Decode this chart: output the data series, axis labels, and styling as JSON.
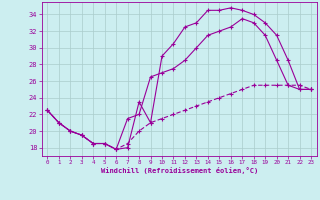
{
  "xlabel": "Windchill (Refroidissement éolien,°C)",
  "ylabel": "",
  "bg_color": "#cceef0",
  "line_color": "#990099",
  "grid_color": "#aacccc",
  "xlim": [
    -0.5,
    23.5
  ],
  "ylim": [
    17.0,
    35.5
  ],
  "xticks": [
    0,
    1,
    2,
    3,
    4,
    5,
    6,
    7,
    8,
    9,
    10,
    11,
    12,
    13,
    14,
    15,
    16,
    17,
    18,
    19,
    20,
    21,
    22,
    23
  ],
  "yticks": [
    18,
    20,
    22,
    24,
    26,
    28,
    30,
    32,
    34
  ],
  "curve1_x": [
    0,
    1,
    2,
    3,
    4,
    5,
    6,
    7,
    8,
    9,
    10,
    11,
    12,
    13,
    14,
    15,
    16,
    17,
    18,
    19,
    20,
    21,
    22,
    23
  ],
  "curve1_y": [
    22.5,
    21.0,
    20.0,
    19.5,
    18.5,
    18.5,
    17.8,
    18.0,
    23.5,
    21.0,
    29.0,
    30.5,
    32.5,
    33.0,
    34.5,
    34.5,
    34.8,
    34.5,
    34.0,
    33.0,
    31.5,
    28.5,
    25.0,
    25.0
  ],
  "curve2_x": [
    0,
    1,
    2,
    3,
    4,
    5,
    6,
    7,
    8,
    9,
    10,
    11,
    12,
    13,
    14,
    15,
    16,
    17,
    18,
    19,
    20,
    21,
    22,
    23
  ],
  "curve2_y": [
    22.5,
    21.0,
    20.0,
    19.5,
    18.5,
    18.5,
    17.8,
    21.5,
    22.0,
    26.5,
    27.0,
    27.5,
    28.5,
    30.0,
    31.5,
    32.0,
    32.5,
    33.5,
    33.0,
    31.5,
    28.5,
    25.5,
    25.0,
    25.0
  ],
  "curve3_x": [
    0,
    1,
    2,
    3,
    4,
    5,
    6,
    7,
    8,
    9,
    10,
    11,
    12,
    13,
    14,
    15,
    16,
    17,
    18,
    19,
    20,
    21,
    22,
    23
  ],
  "curve3_y": [
    22.5,
    21.0,
    20.0,
    19.5,
    18.5,
    18.5,
    17.8,
    18.5,
    20.0,
    21.0,
    21.5,
    22.0,
    22.5,
    23.0,
    23.5,
    24.0,
    24.5,
    25.0,
    25.5,
    25.5,
    25.5,
    25.5,
    25.5,
    25.0
  ]
}
